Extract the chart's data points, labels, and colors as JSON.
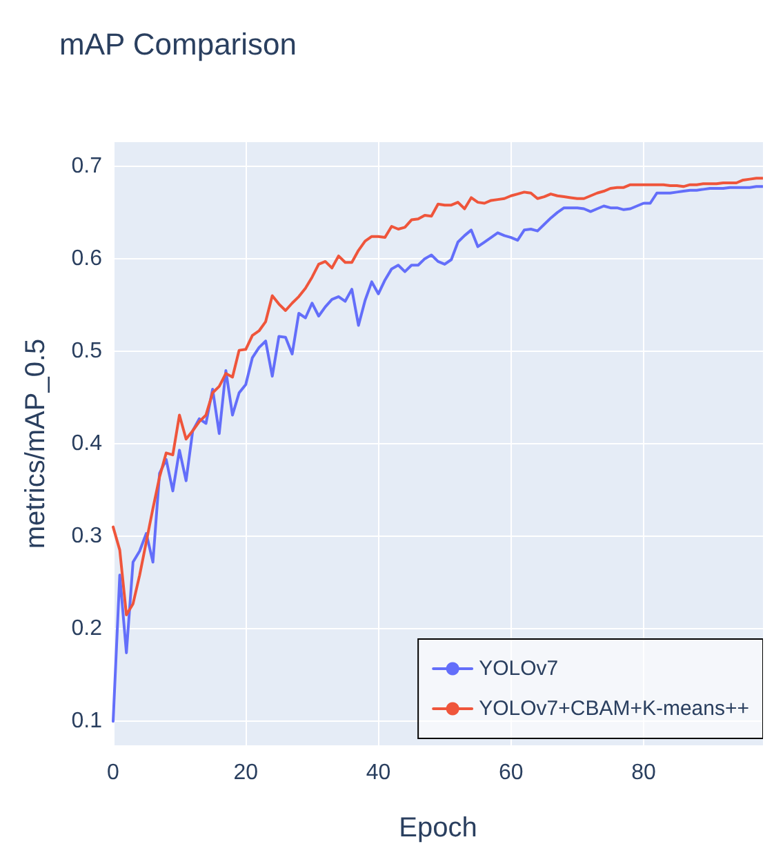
{
  "chart_data": {
    "type": "line",
    "title": "mAP Comparison",
    "xlabel": "Epoch",
    "ylabel": "metrics/mAP_0.5",
    "x": [
      0,
      1,
      2,
      3,
      4,
      5,
      6,
      7,
      8,
      9,
      10,
      11,
      12,
      13,
      14,
      15,
      16,
      17,
      18,
      19,
      20,
      21,
      22,
      23,
      24,
      25,
      26,
      27,
      28,
      29,
      30,
      31,
      32,
      33,
      34,
      35,
      36,
      37,
      38,
      39,
      40,
      41,
      42,
      43,
      44,
      45,
      46,
      47,
      48,
      49,
      50,
      51,
      52,
      53,
      54,
      55,
      56,
      57,
      58,
      59,
      60,
      61,
      62,
      63,
      64,
      65,
      66,
      67,
      68,
      69,
      70,
      71,
      72,
      73,
      74,
      75,
      76,
      77,
      78,
      79,
      80,
      81,
      82,
      83,
      84,
      85,
      86,
      87,
      88,
      89,
      90,
      91,
      92,
      93,
      94,
      95,
      96,
      97,
      98
    ],
    "series": [
      {
        "name": "YOLOv7",
        "color": "#636efa",
        "values": [
          0.1,
          0.258,
          0.174,
          0.272,
          0.284,
          0.303,
          0.272,
          0.368,
          0.383,
          0.349,
          0.393,
          0.36,
          0.414,
          0.427,
          0.422,
          0.459,
          0.411,
          0.479,
          0.431,
          0.455,
          0.464,
          0.493,
          0.504,
          0.511,
          0.473,
          0.516,
          0.515,
          0.497,
          0.541,
          0.536,
          0.552,
          0.538,
          0.548,
          0.556,
          0.559,
          0.554,
          0.567,
          0.528,
          0.555,
          0.575,
          0.562,
          0.577,
          0.589,
          0.593,
          0.586,
          0.593,
          0.593,
          0.6,
          0.604,
          0.597,
          0.594,
          0.599,
          0.618,
          0.625,
          0.631,
          0.613,
          0.618,
          0.623,
          0.628,
          0.625,
          0.623,
          0.62,
          0.631,
          0.632,
          0.63,
          0.637,
          0.644,
          0.65,
          0.655,
          0.655,
          0.655,
          0.654,
          0.651,
          0.654,
          0.657,
          0.655,
          0.655,
          0.653,
          0.654,
          0.657,
          0.66,
          0.66,
          0.671,
          0.671,
          0.671,
          0.672,
          0.673,
          0.674,
          0.674,
          0.675,
          0.676,
          0.676,
          0.676,
          0.677,
          0.677,
          0.677,
          0.677,
          0.678,
          0.678
        ]
      },
      {
        "name": "YOLOv7+CBAM+K-means++",
        "color": "#ef553b",
        "values": [
          0.31,
          0.285,
          0.215,
          0.227,
          0.258,
          0.294,
          0.33,
          0.364,
          0.39,
          0.388,
          0.431,
          0.405,
          0.414,
          0.424,
          0.431,
          0.455,
          0.462,
          0.476,
          0.472,
          0.501,
          0.502,
          0.517,
          0.522,
          0.532,
          0.56,
          0.551,
          0.544,
          0.552,
          0.559,
          0.568,
          0.58,
          0.594,
          0.597,
          0.59,
          0.603,
          0.596,
          0.596,
          0.609,
          0.619,
          0.624,
          0.624,
          0.623,
          0.635,
          0.632,
          0.634,
          0.642,
          0.643,
          0.647,
          0.646,
          0.659,
          0.658,
          0.658,
          0.661,
          0.654,
          0.666,
          0.661,
          0.66,
          0.663,
          0.664,
          0.665,
          0.668,
          0.67,
          0.672,
          0.671,
          0.665,
          0.667,
          0.67,
          0.668,
          0.667,
          0.666,
          0.665,
          0.665,
          0.668,
          0.671,
          0.673,
          0.676,
          0.677,
          0.677,
          0.68,
          0.68,
          0.68,
          0.68,
          0.68,
          0.68,
          0.679,
          0.679,
          0.678,
          0.68,
          0.68,
          0.681,
          0.681,
          0.681,
          0.682,
          0.682,
          0.682,
          0.685,
          0.686,
          0.687,
          0.687
        ]
      }
    ],
    "xlim": [
      0,
      98
    ],
    "xticks": [
      0,
      20,
      40,
      60,
      80
    ],
    "ylim": [
      0.074,
      0.726
    ],
    "yticks": [
      0.1,
      0.2,
      0.3,
      0.4,
      0.5,
      0.6,
      0.7
    ],
    "grid": true,
    "legend": "bottom right",
    "line_style": "solid",
    "marker": "none"
  }
}
